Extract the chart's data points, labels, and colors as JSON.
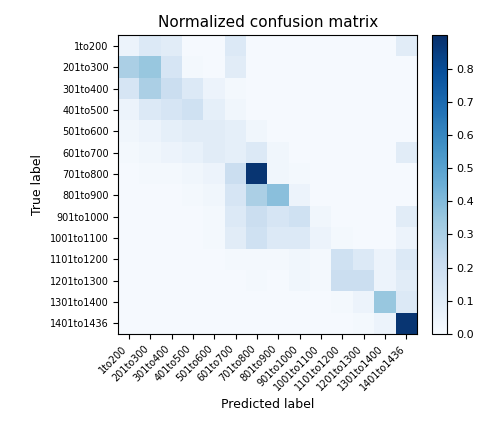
{
  "title": "Normalized confusion matrix",
  "xlabel": "Predicted label",
  "ylabel": "True label",
  "classes": [
    "1to200",
    "201to300",
    "301to400",
    "401to500",
    "501to600",
    "601to700",
    "701to800",
    "801to900",
    "901to1000",
    "1001to1100",
    "1101to1200",
    "1201to1300",
    "1301to1400",
    "1401to1436"
  ],
  "matrix": [
    [
      0.05,
      0.12,
      0.1,
      0.01,
      0.01,
      0.12,
      0.01,
      0.01,
      0.01,
      0.01,
      0.01,
      0.01,
      0.01,
      0.1
    ],
    [
      0.3,
      0.35,
      0.15,
      0.02,
      0.01,
      0.1,
      0.01,
      0.01,
      0.01,
      0.01,
      0.01,
      0.01,
      0.01,
      0.01
    ],
    [
      0.15,
      0.3,
      0.2,
      0.12,
      0.05,
      0.02,
      0.01,
      0.01,
      0.01,
      0.01,
      0.01,
      0.01,
      0.01,
      0.01
    ],
    [
      0.05,
      0.12,
      0.15,
      0.18,
      0.08,
      0.03,
      0.01,
      0.01,
      0.01,
      0.01,
      0.01,
      0.01,
      0.01,
      0.01
    ],
    [
      0.03,
      0.05,
      0.08,
      0.1,
      0.1,
      0.08,
      0.03,
      0.01,
      0.01,
      0.01,
      0.01,
      0.01,
      0.01,
      0.01
    ],
    [
      0.02,
      0.03,
      0.05,
      0.07,
      0.1,
      0.08,
      0.12,
      0.03,
      0.01,
      0.01,
      0.01,
      0.01,
      0.01,
      0.1
    ],
    [
      0.01,
      0.02,
      0.02,
      0.03,
      0.05,
      0.2,
      0.88,
      0.03,
      0.02,
      0.01,
      0.01,
      0.01,
      0.01,
      0.01
    ],
    [
      0.01,
      0.01,
      0.01,
      0.02,
      0.03,
      0.15,
      0.3,
      0.38,
      0.05,
      0.01,
      0.01,
      0.01,
      0.01,
      0.01
    ],
    [
      0.01,
      0.01,
      0.01,
      0.01,
      0.02,
      0.12,
      0.2,
      0.15,
      0.18,
      0.03,
      0.01,
      0.01,
      0.01,
      0.1
    ],
    [
      0.01,
      0.01,
      0.01,
      0.01,
      0.02,
      0.1,
      0.18,
      0.12,
      0.12,
      0.05,
      0.02,
      0.01,
      0.01,
      0.05
    ],
    [
      0.01,
      0.01,
      0.01,
      0.01,
      0.01,
      0.02,
      0.02,
      0.02,
      0.03,
      0.02,
      0.18,
      0.12,
      0.05,
      0.12
    ],
    [
      0.01,
      0.01,
      0.01,
      0.01,
      0.01,
      0.01,
      0.02,
      0.01,
      0.03,
      0.02,
      0.2,
      0.2,
      0.05,
      0.1
    ],
    [
      0.01,
      0.01,
      0.01,
      0.01,
      0.01,
      0.01,
      0.01,
      0.01,
      0.01,
      0.01,
      0.02,
      0.05,
      0.35,
      0.12
    ],
    [
      0.01,
      0.01,
      0.01,
      0.01,
      0.01,
      0.01,
      0.01,
      0.01,
      0.01,
      0.01,
      0.01,
      0.02,
      0.05,
      0.88
    ]
  ],
  "cmap": "Blues",
  "vmin": 0.0,
  "vmax": 0.9,
  "colorbar_ticks": [
    0.0,
    0.1,
    0.2,
    0.3,
    0.4,
    0.5,
    0.6,
    0.7,
    0.8
  ],
  "title_fontsize": 11,
  "label_fontsize": 9,
  "tick_fontsize": 7,
  "figwidth": 4.9,
  "figheight": 4.26,
  "dpi": 100
}
